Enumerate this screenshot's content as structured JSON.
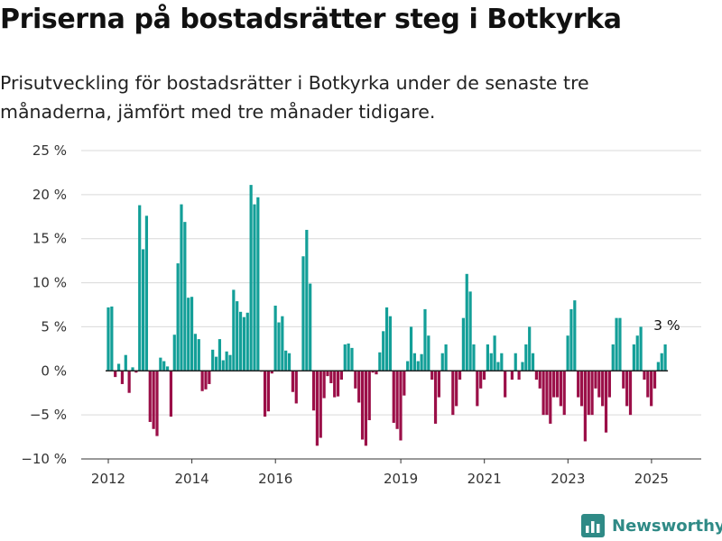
{
  "title": "Priserna på bostadsrätter steg i Botkyrka",
  "subtitle": "Prisutveckling för bostadsrätter i Botkyrka under de senaste tre månaderna, jämfört med tre månader tidigare.",
  "brand": "Newsworthy",
  "colors": {
    "positive": "#139f98",
    "negative": "#9b0f48",
    "grid": "#d9d9d9"
  },
  "chart_data": {
    "type": "bar",
    "y_unit": "%",
    "ylim": [
      -10,
      25
    ],
    "yticks": [
      {
        "value": 25,
        "label": "25 %"
      },
      {
        "value": 20,
        "label": "20 %"
      },
      {
        "value": 15,
        "label": "15 %"
      },
      {
        "value": 10,
        "label": "10 %"
      },
      {
        "value": 5,
        "label": "5 %"
      },
      {
        "value": 0,
        "label": "0 %"
      },
      {
        "value": -5,
        "label": "−5 %"
      },
      {
        "value": -10,
        "label": "−10 %"
      }
    ],
    "xticks": [
      {
        "value": 2012,
        "label": "2012"
      },
      {
        "value": 2014,
        "label": "2014"
      },
      {
        "value": 2016,
        "label": "2016"
      },
      {
        "value": 2019,
        "label": "2019"
      },
      {
        "value": 2021,
        "label": "2021"
      },
      {
        "value": 2023,
        "label": "2023"
      },
      {
        "value": 2025,
        "label": "2025"
      }
    ],
    "x_start": 2012.0,
    "x_step_years": 0.0833,
    "grid": true,
    "annotation": {
      "text": "3 %",
      "value": 3
    },
    "values": [
      7.2,
      7.3,
      -0.7,
      0.8,
      -1.5,
      1.8,
      -2.5,
      0.4,
      -0.2,
      18.8,
      13.8,
      17.6,
      -5.8,
      -6.6,
      -7.4,
      1.5,
      1.1,
      0.5,
      -5.2,
      4.1,
      12.2,
      18.9,
      16.9,
      8.3,
      8.4,
      4.2,
      3.6,
      -2.3,
      -2.1,
      -1.5,
      2.4,
      1.6,
      3.6,
      1.2,
      2.2,
      1.8,
      9.2,
      7.9,
      6.7,
      6.1,
      6.6,
      21.1,
      18.9,
      19.7,
      -0.1,
      -5.2,
      -4.6,
      -0.3,
      7.4,
      5.5,
      6.2,
      2.3,
      2.0,
      -2.4,
      -3.7,
      0,
      13.0,
      16.0,
      9.9,
      -4.5,
      -8.5,
      -7.6,
      -3.1,
      -0.6,
      -1.4,
      -3.0,
      -2.9,
      -1.0,
      3.0,
      3.1,
      2.6,
      -2.0,
      -3.6,
      -7.8,
      -8.5,
      -5.6,
      -0.2,
      -0.4,
      2.1,
      4.5,
      7.2,
      6.2,
      -5.9,
      -6.6,
      -7.9,
      -2.8,
      1.1,
      5.0,
      2.0,
      1.1,
      1.9,
      7.0,
      4.0,
      -1.0,
      -6.0,
      -3.0,
      2.0,
      3.0,
      0,
      -5.0,
      -4.0,
      -1.0,
      6.0,
      11.0,
      9.0,
      3.0,
      -4.0,
      -2.0,
      -1.0,
      3.0,
      2.0,
      4.0,
      1.0,
      2.0,
      -3.0,
      0,
      -1.0,
      2.0,
      -1.0,
      1.0,
      3.0,
      5.0,
      2.0,
      -1.0,
      -2.0,
      -5.0,
      -5.0,
      -6.0,
      -3.0,
      -3.0,
      -4.0,
      -5.0,
      4.0,
      7.0,
      8.0,
      -3.0,
      -4.0,
      -8.0,
      -5.0,
      -5.0,
      -2.0,
      -3.0,
      -4.0,
      -7.0,
      -3.0,
      3.0,
      6.0,
      6.0,
      -2.0,
      -4.0,
      -5.0,
      3.0,
      4.0,
      5.0,
      -1.0,
      -3.0,
      -4.0,
      -2.0,
      1.0,
      2.0,
      3.0
    ]
  }
}
